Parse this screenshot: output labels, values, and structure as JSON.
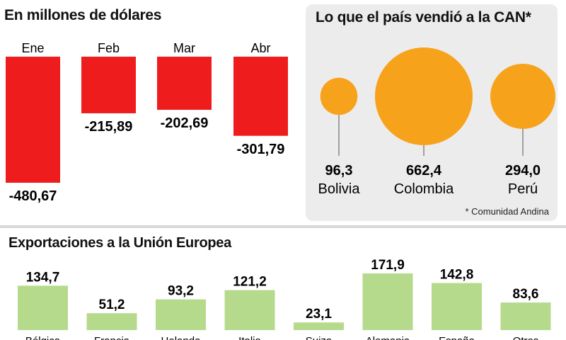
{
  "chart_data": [
    {
      "type": "bar",
      "title": "En millones de dólares",
      "categories": [
        "Ene",
        "Feb",
        "Mar",
        "Abr"
      ],
      "values": [
        -480.67,
        -215.89,
        -202.69,
        -301.79
      ],
      "value_labels": [
        "-480,67",
        "-215,89",
        "-202,69",
        "-301,79"
      ],
      "color": "#ee1c1c",
      "grid": false
    },
    {
      "type": "bubble",
      "title": "Lo que el país vendió a la CAN*",
      "categories": [
        "Bolivia",
        "Colombia",
        "Perú"
      ],
      "values": [
        96.3,
        662.4,
        294.0
      ],
      "value_labels": [
        "96,3",
        "662,4",
        "294,0"
      ],
      "color": "#f7a21b",
      "footnote": "* Comunidad Andina"
    },
    {
      "type": "bar",
      "title": "Exportaciones a  la Unión Europea",
      "categories": [
        "Bélgica",
        "Francia",
        "Holanda",
        "Italia",
        "Suiza",
        "Alemania",
        "España",
        "Otros"
      ],
      "values": [
        134.7,
        51.2,
        93.2,
        121.2,
        23.1,
        171.9,
        142.8,
        83.6
      ],
      "value_labels": [
        "134,7",
        "51,2",
        "93,2",
        "121,2",
        "23,1",
        "171,9",
        "142,8",
        "83,6"
      ],
      "color": "#b5da8c",
      "grid": false
    }
  ]
}
